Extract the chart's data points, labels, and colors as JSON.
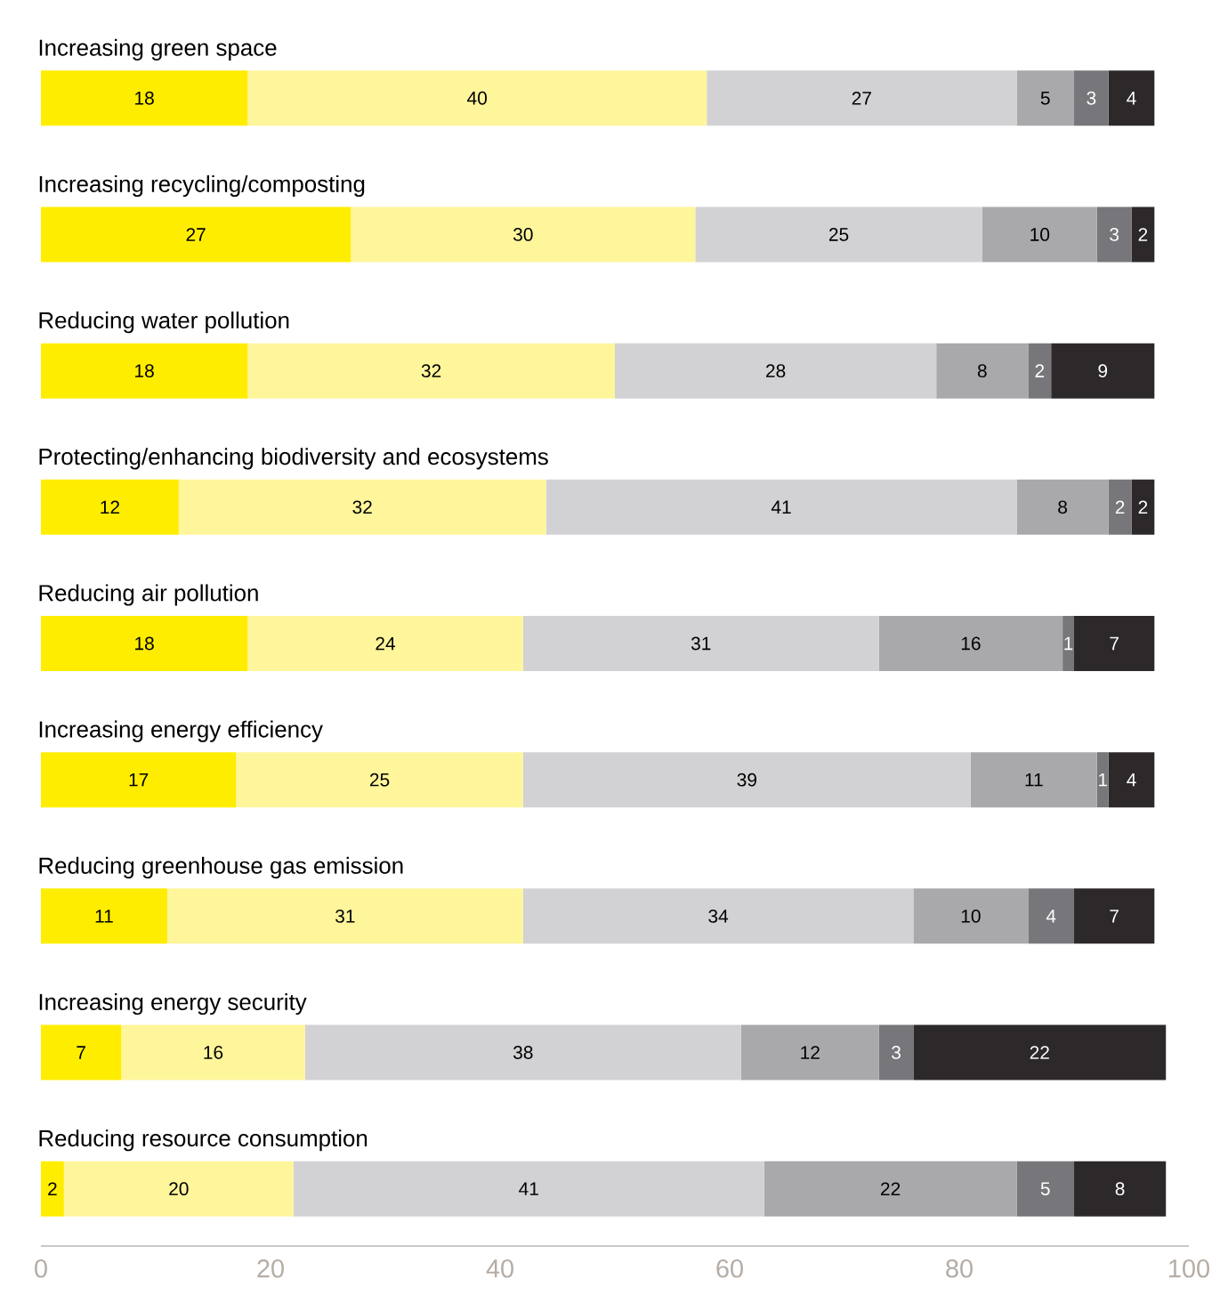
{
  "chart_data": {
    "type": "bar",
    "orientation": "horizontal",
    "stacked": true,
    "data_labels": true,
    "categories": [
      "Increasing green space",
      "Increasing recycling/composting",
      "Reducing water pollution",
      "Protecting/enhancing biodiversity and ecosystems",
      "Reducing air pollution",
      "Increasing energy efficiency",
      "Reducing greenhouse gas emission",
      "Increasing energy security",
      "Reducing resource consumption"
    ],
    "series": [
      {
        "color": "#ffed00",
        "values": [
          18,
          27,
          18,
          12,
          18,
          17,
          11,
          7,
          2
        ]
      },
      {
        "color": "#fff59b",
        "values": [
          40,
          30,
          32,
          32,
          24,
          25,
          31,
          16,
          20
        ]
      },
      {
        "color": "#d2d2d4",
        "values": [
          27,
          25,
          28,
          41,
          31,
          39,
          34,
          38,
          41
        ]
      },
      {
        "color": "#a9a9ab",
        "values": [
          5,
          10,
          8,
          8,
          16,
          11,
          10,
          12,
          22
        ]
      },
      {
        "color": "#77767a",
        "values": [
          3,
          3,
          2,
          2,
          1,
          1,
          4,
          3,
          5
        ]
      },
      {
        "color": "#2d292a",
        "values": [
          4,
          2,
          9,
          2,
          7,
          4,
          7,
          22,
          8
        ]
      }
    ],
    "xlim": [
      0,
      100
    ],
    "xticks": [
      0,
      20,
      40,
      60,
      80,
      100
    ]
  }
}
